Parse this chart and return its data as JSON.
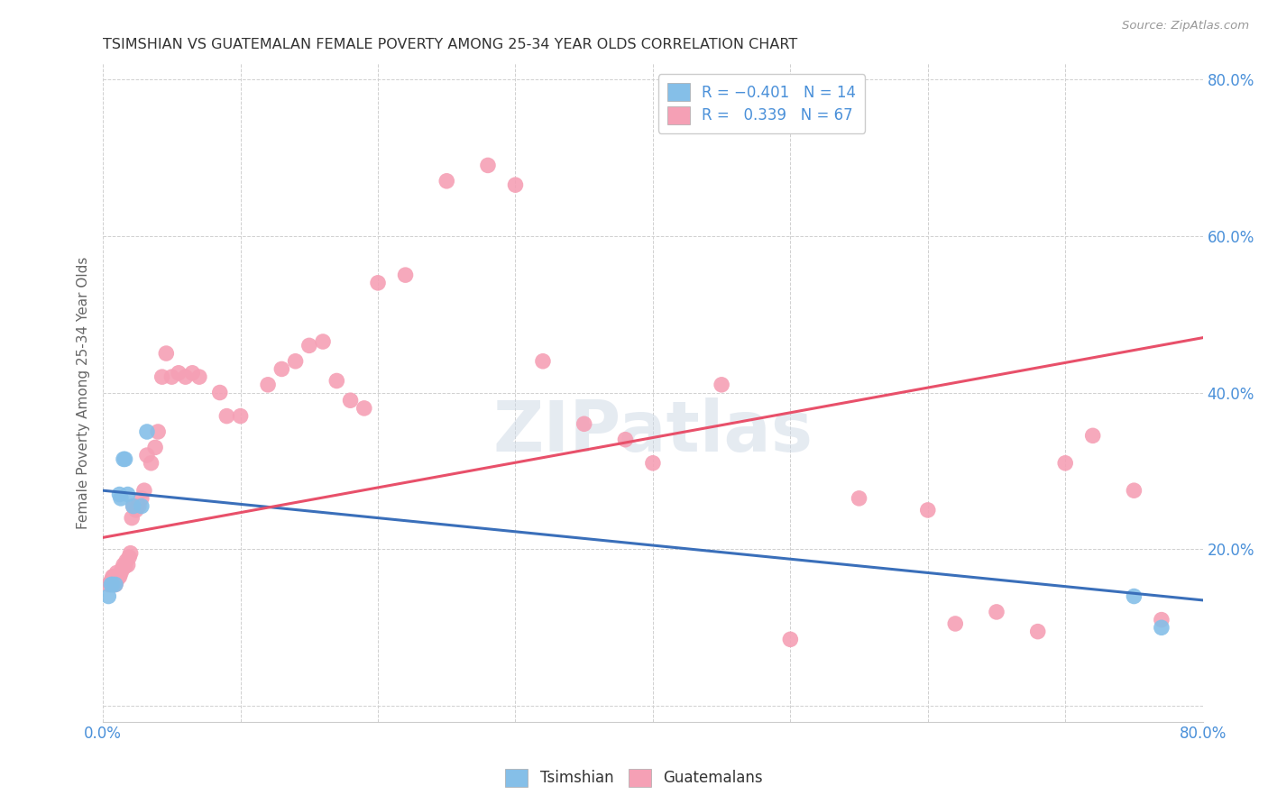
{
  "title": "TSIMSHIAN VS GUATEMALAN FEMALE POVERTY AMONG 25-34 YEAR OLDS CORRELATION CHART",
  "source": "Source: ZipAtlas.com",
  "ylabel": "Female Poverty Among 25-34 Year Olds",
  "xlim": [
    0.0,
    0.8
  ],
  "ylim": [
    -0.02,
    0.82
  ],
  "xticks": [
    0.0,
    0.1,
    0.2,
    0.3,
    0.4,
    0.5,
    0.6,
    0.7,
    0.8
  ],
  "yticks": [
    0.0,
    0.2,
    0.4,
    0.6,
    0.8
  ],
  "xtick_labels": [
    "0.0%",
    "",
    "",
    "",
    "",
    "",
    "",
    "",
    "80.0%"
  ],
  "ytick_labels": [
    "",
    "20.0%",
    "40.0%",
    "60.0%",
    "80.0%"
  ],
  "background_color": "#ffffff",
  "grid_color": "#d0d0d0",
  "watermark": "ZIPatlas",
  "tsimshian_color": "#85bfe8",
  "guatemalan_color": "#f5a0b5",
  "tsimshian_line_color": "#3a6fba",
  "guatemalan_line_color": "#e8506a",
  "ts_x": [
    0.004,
    0.006,
    0.007,
    0.009,
    0.012,
    0.013,
    0.015,
    0.016,
    0.018,
    0.022,
    0.028,
    0.032,
    0.75,
    0.77
  ],
  "ts_y": [
    0.14,
    0.155,
    0.155,
    0.155,
    0.27,
    0.265,
    0.315,
    0.315,
    0.27,
    0.255,
    0.255,
    0.35,
    0.14,
    0.1
  ],
  "gt_x": [
    0.004,
    0.006,
    0.007,
    0.008,
    0.008,
    0.009,
    0.01,
    0.01,
    0.011,
    0.012,
    0.013,
    0.014,
    0.015,
    0.016,
    0.017,
    0.018,
    0.019,
    0.02,
    0.021,
    0.022,
    0.024,
    0.025,
    0.026,
    0.028,
    0.03,
    0.032,
    0.035,
    0.038,
    0.04,
    0.043,
    0.046,
    0.05,
    0.055,
    0.06,
    0.065,
    0.07,
    0.085,
    0.09,
    0.1,
    0.12,
    0.13,
    0.14,
    0.15,
    0.16,
    0.17,
    0.18,
    0.19,
    0.2,
    0.22,
    0.25,
    0.28,
    0.3,
    0.32,
    0.35,
    0.38,
    0.4,
    0.45,
    0.5,
    0.55,
    0.6,
    0.62,
    0.65,
    0.68,
    0.7,
    0.72,
    0.75,
    0.77
  ],
  "gt_y": [
    0.155,
    0.16,
    0.165,
    0.165,
    0.165,
    0.155,
    0.17,
    0.16,
    0.165,
    0.165,
    0.17,
    0.175,
    0.18,
    0.178,
    0.185,
    0.18,
    0.19,
    0.195,
    0.24,
    0.255,
    0.25,
    0.255,
    0.255,
    0.265,
    0.275,
    0.32,
    0.31,
    0.33,
    0.35,
    0.42,
    0.45,
    0.42,
    0.425,
    0.42,
    0.425,
    0.42,
    0.4,
    0.37,
    0.37,
    0.41,
    0.43,
    0.44,
    0.46,
    0.465,
    0.415,
    0.39,
    0.38,
    0.54,
    0.55,
    0.67,
    0.69,
    0.665,
    0.44,
    0.36,
    0.34,
    0.31,
    0.41,
    0.085,
    0.265,
    0.25,
    0.105,
    0.12,
    0.095,
    0.31,
    0.345,
    0.275,
    0.11
  ],
  "ts_line_x0": 0.0,
  "ts_line_x1": 0.8,
  "ts_line_y0": 0.275,
  "ts_line_y1": 0.135,
  "gt_line_x0": 0.0,
  "gt_line_x1": 0.8,
  "gt_line_y0": 0.215,
  "gt_line_y1": 0.47
}
